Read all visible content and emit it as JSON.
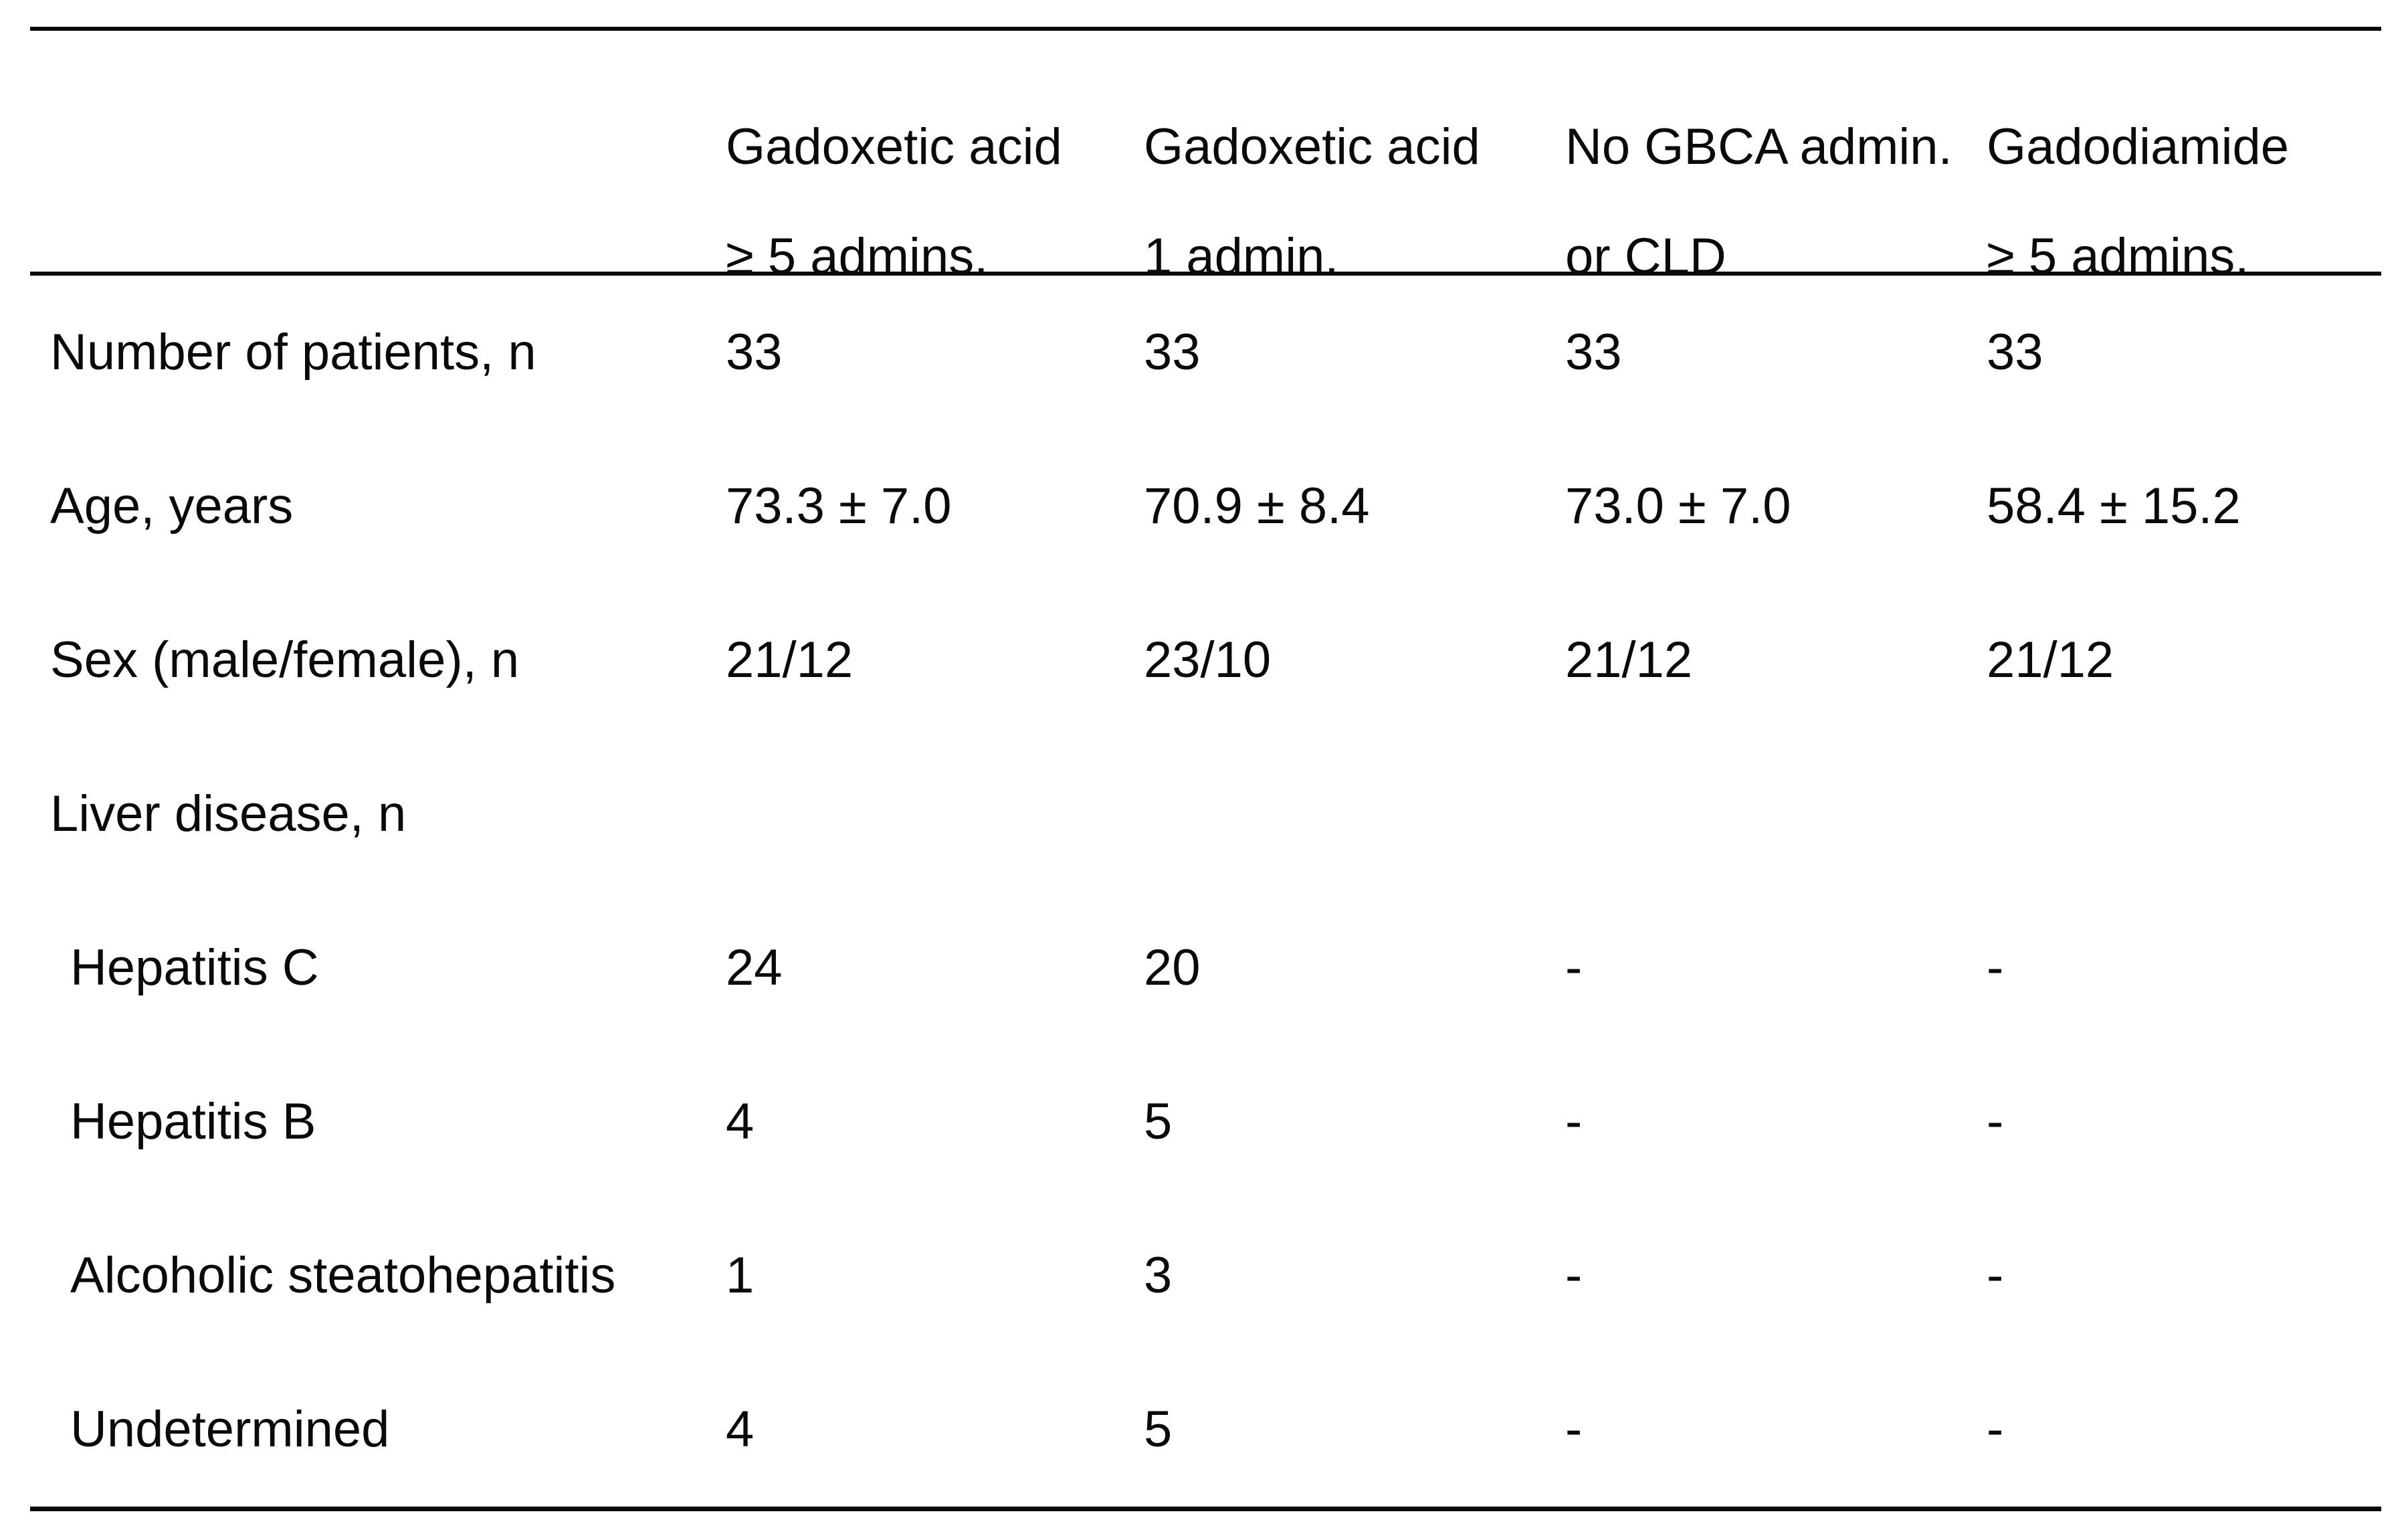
{
  "table": {
    "columns": [
      {
        "line1": "Gadoxetic acid",
        "line2": "≥ 5 admins."
      },
      {
        "line1": "Gadoxetic acid",
        "line2": "1 admin."
      },
      {
        "line1": "No GBCA admin.",
        "line2": "or CLD"
      },
      {
        "line1": "Gadodiamide",
        "line2": "≥ 5 admins."
      }
    ],
    "rows": [
      {
        "label": "Number of patients, n",
        "values": [
          "33",
          "33",
          "33",
          "33"
        ]
      },
      {
        "label": "Age, years",
        "values": [
          "73.3 ± 7.0",
          "70.9 ± 8.4",
          "73.0 ± 7.0",
          "58.4 ± 15.2"
        ]
      },
      {
        "label": "Sex (male/female), n",
        "values": [
          "21/12",
          "23/10",
          "21/12",
          "21/12"
        ]
      },
      {
        "label": "Liver disease, n",
        "values": [
          "",
          "",
          "",
          ""
        ]
      },
      {
        "label": "Hepatitis C",
        "values": [
          "24",
          "20",
          "-",
          "-"
        ]
      },
      {
        "label": "Hepatitis B",
        "values": [
          "4",
          "5",
          "-",
          "-"
        ]
      },
      {
        "label": "Alcoholic steatohepatitis",
        "values": [
          "1",
          "3",
          "-",
          "-"
        ]
      },
      {
        "label": "Undetermined",
        "values": [
          "4",
          "5",
          "-",
          "-"
        ]
      }
    ]
  }
}
